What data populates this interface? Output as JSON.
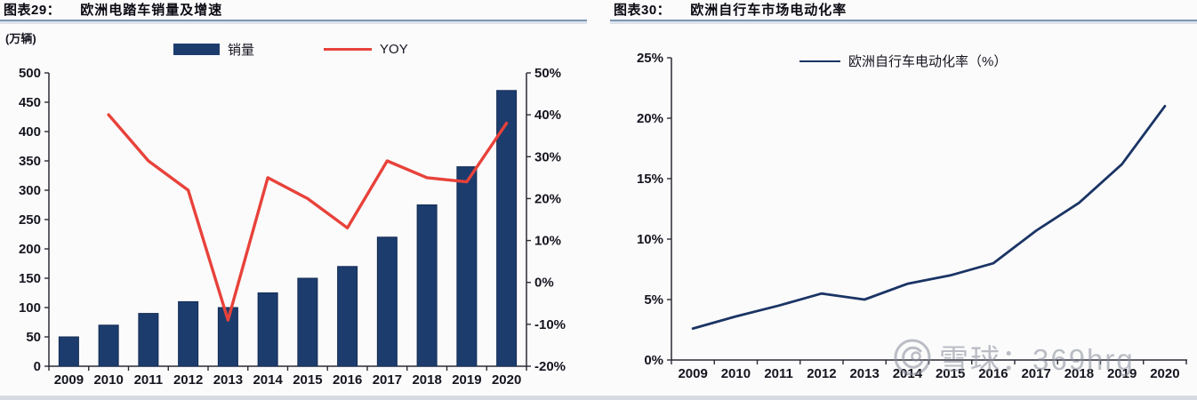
{
  "watermark": {
    "logo": "xueqiu-logo-icon",
    "text": "雪球：369hrg"
  },
  "chart_data": [
    {
      "type": "bar+line",
      "panel": "left",
      "figure_label": "图表29：",
      "title": "欧洲电踏车销量及增速",
      "unit": "(万辆)",
      "categories": [
        "2009",
        "2010",
        "2011",
        "2012",
        "2013",
        "2014",
        "2015",
        "2016",
        "2017",
        "2018",
        "2019",
        "2020"
      ],
      "series": [
        {
          "name": "销量",
          "type": "bar",
          "axis": "left",
          "color": "#1d3c6e",
          "values": [
            50,
            70,
            90,
            110,
            100,
            125,
            150,
            170,
            220,
            275,
            340,
            470
          ]
        },
        {
          "name": "YOY",
          "type": "line",
          "axis": "right",
          "color": "#e8423a",
          "values": [
            null,
            40,
            29,
            22,
            -9,
            25,
            20,
            13,
            29,
            25,
            24,
            38
          ]
        }
      ],
      "axes": {
        "left": {
          "min": 0,
          "max": 500,
          "tick_labels": [
            "500",
            "450",
            "400",
            "350",
            "300",
            "250",
            "200",
            "150",
            "100",
            "50",
            "0"
          ]
        },
        "right": {
          "min": -20,
          "max": 50,
          "tick_labels": [
            "50%",
            "40%",
            "30%",
            "20%",
            "10%",
            "0%",
            "-10%",
            "-20%"
          ]
        }
      },
      "legend_position": "top",
      "grid": false
    },
    {
      "type": "line",
      "panel": "right",
      "figure_label": "图表30：",
      "title": "欧洲自行车市场电动化率",
      "categories": [
        "2009",
        "2010",
        "2011",
        "2012",
        "2013",
        "2014",
        "2015",
        "2016",
        "2017",
        "2018",
        "2019",
        "2020"
      ],
      "series": [
        {
          "name": "欧洲自行车电动化率（%）",
          "type": "line",
          "color": "#1a3464",
          "values": [
            2.6,
            3.6,
            4.5,
            5.5,
            5.0,
            6.3,
            7.0,
            8.0,
            10.7,
            13.0,
            16.2,
            21.0
          ]
        }
      ],
      "axes": {
        "left": {
          "min": 0,
          "max": 25,
          "tick_labels": [
            "25%",
            "20%",
            "15%",
            "10%",
            "5%",
            "0%"
          ]
        }
      },
      "legend_position": "top",
      "grid": false
    }
  ]
}
